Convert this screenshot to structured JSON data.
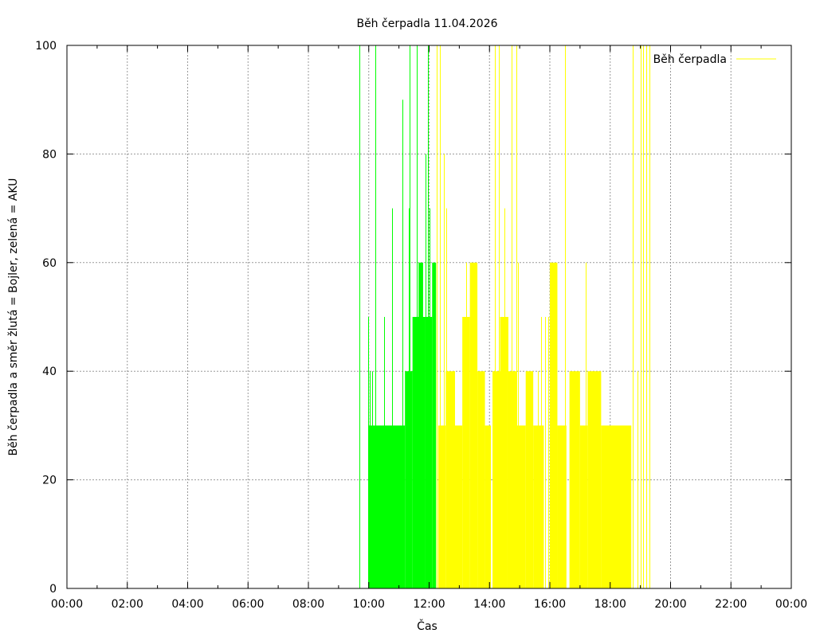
{
  "chart_data": {
    "type": "bar",
    "title": "Běh čerpadla 11.04.2026",
    "xlabel": "Čas",
    "ylabel": "Běh čerpadla a směr žlutá = Bojler, zelená = AKU",
    "xlim_hours": [
      0,
      24
    ],
    "ylim": [
      0,
      100
    ],
    "x_ticks": [
      "00:00",
      "02:00",
      "04:00",
      "06:00",
      "08:00",
      "10:00",
      "12:00",
      "14:00",
      "16:00",
      "18:00",
      "20:00",
      "22:00",
      "00:00"
    ],
    "y_ticks": [
      "0",
      "20",
      "40",
      "60",
      "80",
      "100"
    ],
    "grid": true,
    "legend": {
      "position": "top-right",
      "label": "Běh čerpadla",
      "color": "#ffff00"
    },
    "colors": {
      "AKU": "#00ff00",
      "Bojler": "#ffff00"
    },
    "series": [
      {
        "mode": "AKU",
        "x_unit": "hour of day",
        "spikes": [
          [
            9.7,
            100
          ],
          [
            9.98,
            50
          ],
          [
            10.04,
            40
          ],
          [
            10.1,
            40
          ],
          [
            10.22,
            100
          ],
          [
            10.5,
            50
          ],
          [
            10.78,
            70
          ],
          [
            11.12,
            90
          ],
          [
            11.32,
            70
          ],
          [
            11.36,
            100
          ],
          [
            11.58,
            100
          ],
          [
            11.88,
            80
          ],
          [
            11.96,
            100
          ],
          [
            12.0,
            70
          ]
        ],
        "blocks": [
          [
            10.0,
            11.2,
            30
          ],
          [
            11.2,
            11.45,
            40
          ],
          [
            11.45,
            11.88,
            50
          ],
          [
            11.65,
            11.8,
            60
          ],
          [
            11.88,
            12.1,
            50
          ],
          [
            12.1,
            12.23,
            60
          ]
        ]
      },
      {
        "mode": "Bojler",
        "x_unit": "hour of day",
        "spikes": [
          [
            12.24,
            100
          ],
          [
            12.35,
            100
          ],
          [
            12.48,
            80
          ],
          [
            12.58,
            70
          ],
          [
            12.82,
            40
          ],
          [
            13.22,
            60
          ],
          [
            14.18,
            100
          ],
          [
            14.3,
            100
          ],
          [
            14.44,
            40
          ],
          [
            14.5,
            70
          ],
          [
            14.6,
            50
          ],
          [
            14.72,
            100
          ],
          [
            14.88,
            100
          ],
          [
            14.95,
            60
          ],
          [
            15.6,
            40
          ],
          [
            15.72,
            50
          ],
          [
            15.84,
            50
          ],
          [
            15.96,
            50
          ],
          [
            16.5,
            100
          ],
          [
            17.2,
            60
          ],
          [
            17.4,
            40
          ],
          [
            17.6,
            40
          ],
          [
            18.75,
            100
          ],
          [
            18.9,
            40
          ],
          [
            19.0,
            100
          ],
          [
            19.1,
            100
          ],
          [
            19.2,
            100
          ],
          [
            19.3,
            100
          ]
        ],
        "blocks": [
          [
            12.3,
            12.55,
            30
          ],
          [
            12.55,
            12.85,
            40
          ],
          [
            12.85,
            13.1,
            30
          ],
          [
            13.1,
            13.35,
            50
          ],
          [
            13.35,
            13.6,
            60
          ],
          [
            13.6,
            13.85,
            40
          ],
          [
            13.85,
            14.05,
            30
          ],
          [
            14.1,
            14.35,
            40
          ],
          [
            14.35,
            14.6,
            50
          ],
          [
            14.6,
            14.9,
            40
          ],
          [
            14.9,
            15.2,
            30
          ],
          [
            15.2,
            15.45,
            40
          ],
          [
            15.45,
            15.8,
            30
          ],
          [
            16.0,
            16.25,
            60
          ],
          [
            16.25,
            16.55,
            30
          ],
          [
            16.65,
            17.0,
            40
          ],
          [
            17.0,
            17.25,
            30
          ],
          [
            17.25,
            17.7,
            40
          ],
          [
            17.7,
            18.7,
            30
          ]
        ]
      }
    ]
  }
}
